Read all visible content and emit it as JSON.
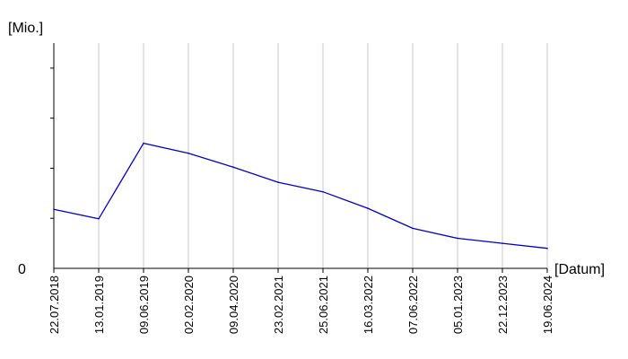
{
  "chart_data": {
    "type": "line",
    "ylabel": "[Mio.]",
    "xlabel": "[Datum]",
    "y_tick_labels": [
      "0"
    ],
    "ylim": [
      0,
      4.5
    ],
    "x": [
      "22.07.2018",
      "13.01.2019",
      "09.06.2019",
      "02.02.2020",
      "09.04.2020",
      "23.02.2021",
      "25.06.2021",
      "16.03.2022",
      "07.06.2022",
      "05.01.2023",
      "22.12.2023",
      "19.06.2024"
    ],
    "series": [
      {
        "values": [
          1.18,
          0.99,
          2.5,
          2.3,
          2.02,
          1.72,
          1.53,
          1.2,
          0.8,
          0.6,
          0.5,
          0.4
        ]
      }
    ],
    "grid": "vertical",
    "line_color": "#0000cc",
    "grid_color": "#c8c8c8"
  }
}
